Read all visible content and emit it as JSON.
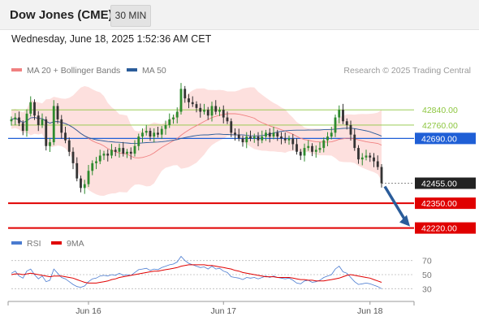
{
  "header": {
    "instrument": "Dow Jones (CME)",
    "timeframe": "30 MIN",
    "datetime": "Wednesday, June 18, 2025 1:52:36 AM CET"
  },
  "chart_data": [
    {
      "type": "line",
      "panel": "price",
      "legend": [
        {
          "label": "MA 20 + Bollinger Bands",
          "color": "#f08080"
        },
        {
          "label": "MA 50",
          "color": "#2a5c9a"
        }
      ],
      "credit": "Research © 2025 Trading Central",
      "x_ticks": [
        "Jun 16",
        "Jun 17",
        "Jun 18"
      ],
      "y_range": [
        42180,
        42990
      ],
      "levels": [
        {
          "label": "42840.00",
          "value": 42840,
          "style": "resistance"
        },
        {
          "label": "42760.00",
          "value": 42760,
          "style": "resistance"
        },
        {
          "label": "42690.00",
          "value": 42690,
          "style": "pivot"
        },
        {
          "label": "42455.00",
          "value": 42455,
          "style": "last"
        },
        {
          "label": "42350.00",
          "value": 42350,
          "style": "support"
        },
        {
          "label": "42220.00",
          "value": 42220,
          "style": "support"
        }
      ],
      "colors": {
        "resistance": "#8dc63f",
        "pivot": "#1f5fd6",
        "support": "#e00000",
        "last": "#222222",
        "up": "#2e8b2e",
        "down": "#333333",
        "arrow": "#2a5c9a"
      },
      "close": [
        42790,
        42800,
        42770,
        42730,
        42820,
        42880,
        42810,
        42760,
        42790,
        42650,
        42670,
        42860,
        42790,
        42720,
        42680,
        42620,
        42560,
        42480,
        42430,
        42450,
        42520,
        42560,
        42570,
        42600,
        42610,
        42600,
        42630,
        42620,
        42640,
        42610,
        42620,
        42610,
        42650,
        42700,
        42720,
        42730,
        42700,
        42720,
        42710,
        42740,
        42760,
        42790,
        42800,
        42830,
        42950,
        42900,
        42880,
        42870,
        42850,
        42830,
        42840,
        42810,
        42860,
        42830,
        42840,
        42800,
        42780,
        42720,
        42710,
        42690,
        42670,
        42700,
        42690,
        42700,
        42680,
        42700,
        42720,
        42700,
        42720,
        42700,
        42690,
        42680,
        42690,
        42660,
        42620,
        42600,
        42640,
        42650,
        42620,
        42630,
        42640,
        42680,
        42700,
        42720,
        42800,
        42840,
        42780,
        42760,
        42710,
        42640,
        42580,
        42590,
        42600,
        42590,
        42570,
        42540,
        42455
      ]
    },
    {
      "type": "line",
      "panel": "rsi",
      "legend": [
        {
          "label": "RSI",
          "color": "#4a7bd0"
        },
        {
          "label": "9MA",
          "color": "#e00000"
        }
      ],
      "y_ticks": [
        70,
        50,
        30
      ],
      "y_range": [
        20,
        80
      ],
      "series": [
        {
          "name": "RSI",
          "values": [
            52,
            55,
            48,
            45,
            55,
            58,
            50,
            44,
            48,
            40,
            42,
            58,
            52,
            46,
            44,
            40,
            36,
            33,
            32,
            34,
            40,
            44,
            45,
            48,
            49,
            48,
            50,
            49,
            52,
            49,
            50,
            49,
            53,
            57,
            58,
            59,
            56,
            58,
            57,
            60,
            62,
            64,
            65,
            68,
            76,
            70,
            66,
            64,
            62,
            60,
            61,
            58,
            62,
            58,
            59,
            55,
            53,
            47,
            46,
            45,
            43,
            46,
            45,
            46,
            44,
            46,
            48,
            46,
            48,
            46,
            45,
            44,
            45,
            42,
            38,
            37,
            41,
            42,
            39,
            40,
            42,
            46,
            48,
            50,
            58,
            62,
            54,
            52,
            46,
            40,
            36,
            37,
            38,
            37,
            35,
            33,
            30
          ]
        },
        {
          "name": "9MA",
          "values": [
            50,
            51,
            51,
            50,
            51,
            52,
            51,
            50,
            49,
            48,
            47,
            48,
            48,
            48,
            47,
            46,
            45,
            43,
            41,
            39,
            38,
            38,
            38,
            39,
            40,
            41,
            43,
            44,
            46,
            47,
            48,
            49,
            50,
            51,
            52,
            53,
            54,
            55,
            55,
            56,
            57,
            58,
            59,
            60,
            62,
            63,
            64,
            64,
            64,
            64,
            64,
            63,
            63,
            62,
            61,
            60,
            59,
            58,
            56,
            55,
            53,
            52,
            51,
            50,
            49,
            48,
            47,
            47,
            47,
            46,
            46,
            46,
            46,
            45,
            44,
            43,
            43,
            42,
            42,
            41,
            41,
            41,
            42,
            43,
            44,
            45,
            47,
            49,
            50,
            49,
            48,
            47,
            46,
            45,
            43,
            41,
            39
          ]
        }
      ]
    }
  ]
}
